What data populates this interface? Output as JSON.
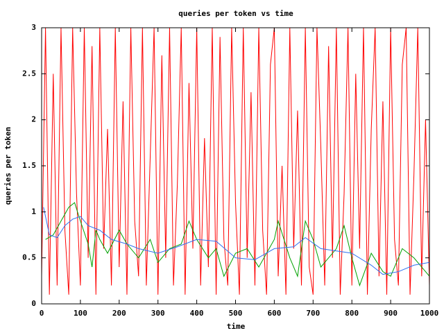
{
  "chart_data": {
    "type": "line",
    "title": "queries per token vs time",
    "xlabel": "time",
    "ylabel": "queries per token",
    "xlim": [
      0,
      1000
    ],
    "ylim": [
      0,
      3
    ],
    "xticks": [
      0,
      100,
      200,
      300,
      400,
      500,
      600,
      700,
      800,
      900,
      1000
    ],
    "yticks": [
      0,
      0.5,
      1,
      1.5,
      2,
      2.5,
      3
    ],
    "series": [
      {
        "color": "#ff0000",
        "x": [
          0,
          10,
          20,
          30,
          40,
          50,
          60,
          70,
          80,
          90,
          100,
          110,
          120,
          130,
          140,
          150,
          160,
          170,
          180,
          190,
          200,
          210,
          220,
          230,
          240,
          250,
          260,
          270,
          280,
          290,
          300,
          310,
          320,
          330,
          340,
          350,
          360,
          370,
          380,
          390,
          400,
          410,
          420,
          430,
          440,
          450,
          460,
          470,
          480,
          490,
          500,
          510,
          520,
          530,
          540,
          550,
          560,
          570,
          580,
          590,
          600,
          610,
          620,
          630,
          640,
          650,
          660,
          670,
          680,
          690,
          700,
          710,
          720,
          730,
          740,
          750,
          760,
          770,
          780,
          790,
          800,
          810,
          820,
          830,
          840,
          850,
          860,
          870,
          880,
          890,
          900,
          910,
          920,
          930,
          940,
          950,
          960,
          970,
          980,
          990,
          1000
        ],
        "values": [
          0.3,
          3,
          0.1,
          2.5,
          0.2,
          3,
          0.8,
          0.1,
          3,
          1.2,
          0.2,
          3,
          0.5,
          2.8,
          0.1,
          3,
          0.6,
          1.9,
          0.2,
          3,
          0.4,
          2.2,
          0.1,
          3,
          0.9,
          0.3,
          3,
          0.2,
          1.6,
          3,
          0.1,
          2.7,
          0.5,
          3,
          0.2,
          1.3,
          3,
          0.1,
          2.4,
          0.6,
          3,
          0.2,
          1.8,
          0.4,
          3,
          0.1,
          2.9,
          0.7,
          0.2,
          3,
          1.1,
          0.1,
          3,
          0.5,
          2.3,
          0.2,
          3,
          0.8,
          0.1,
          2.6,
          3,
          0.3,
          1.5,
          0.1,
          3,
          0.6,
          2.1,
          0.2,
          3,
          0.4,
          0.1,
          3,
          1.7,
          0.2,
          2.8,
          0.5,
          3,
          0.1,
          1.2,
          3,
          0.2,
          2.5,
          0.6,
          3,
          0.1,
          1.9,
          3,
          0.3,
          2.2,
          0.1,
          3,
          0.7,
          0.2,
          2.6,
          3,
          0.1,
          1.4,
          3,
          0.3,
          2.0,
          0.2
        ]
      },
      {
        "color": "#00a000",
        "x": [
          10,
          30,
          50,
          70,
          85,
          100,
          120,
          130,
          140,
          150,
          170,
          200,
          220,
          250,
          280,
          300,
          330,
          360,
          380,
          400,
          430,
          450,
          470,
          500,
          530,
          560,
          600,
          610,
          640,
          660,
          680,
          700,
          720,
          760,
          780,
          800,
          820,
          850,
          880,
          900,
          930,
          960,
          980,
          1000
        ],
        "values": [
          0.7,
          0.75,
          0.9,
          1.05,
          1.1,
          0.9,
          0.65,
          0.4,
          0.8,
          0.7,
          0.55,
          0.8,
          0.65,
          0.5,
          0.7,
          0.45,
          0.6,
          0.65,
          0.9,
          0.7,
          0.5,
          0.6,
          0.3,
          0.55,
          0.6,
          0.4,
          0.7,
          0.9,
          0.5,
          0.3,
          0.9,
          0.7,
          0.4,
          0.6,
          0.85,
          0.5,
          0.2,
          0.55,
          0.35,
          0.3,
          0.6,
          0.5,
          0.4,
          0.3
        ]
      },
      {
        "color": "#3070f0",
        "x": [
          5,
          20,
          40,
          60,
          80,
          100,
          120,
          150,
          180,
          220,
          250,
          300,
          350,
          400,
          450,
          500,
          550,
          600,
          650,
          680,
          720,
          800,
          850,
          880,
          920,
          960,
          1000
        ],
        "values": [
          1.05,
          0.75,
          0.72,
          0.85,
          0.92,
          0.95,
          0.85,
          0.8,
          0.7,
          0.65,
          0.6,
          0.55,
          0.62,
          0.7,
          0.68,
          0.5,
          0.48,
          0.6,
          0.62,
          0.72,
          0.6,
          0.55,
          0.42,
          0.32,
          0.35,
          0.42,
          0.45
        ]
      }
    ]
  }
}
